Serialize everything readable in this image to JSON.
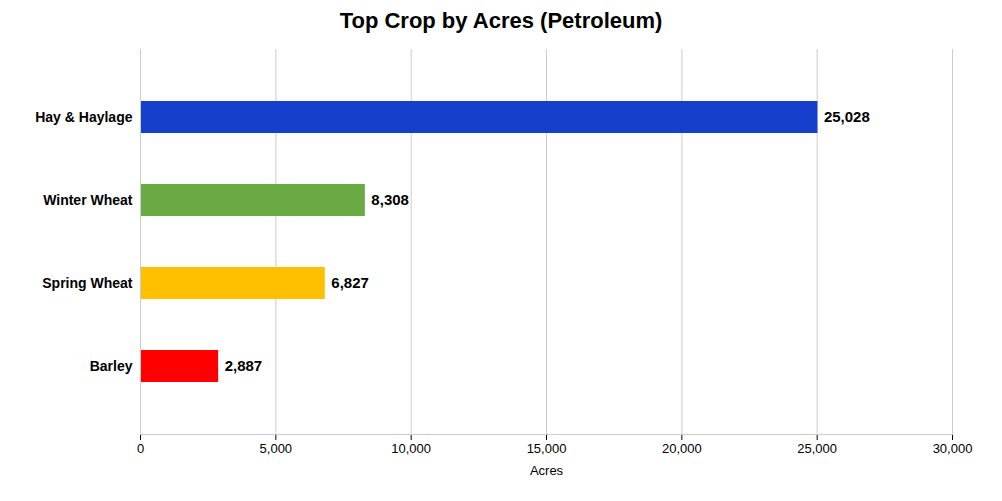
{
  "chart_data": {
    "type": "bar",
    "orientation": "horizontal",
    "title": "Top Crop by Acres (Petroleum)",
    "categories": [
      "Barley",
      "Spring Wheat",
      "Winter Wheat",
      "Hay & Haylage"
    ],
    "values": [
      2887,
      6827,
      8308,
      25028
    ],
    "value_labels": [
      "2,887",
      "6,827",
      "8,308",
      "25,028"
    ],
    "data_labels": true,
    "colors": [
      "#ff0000",
      "#ffc000",
      "#6aaa45",
      "#1640cc"
    ],
    "xlabel": "Acres",
    "xlim": [
      0,
      30000
    ],
    "xticks": [
      0,
      {
        "value": 5000,
        "label": "5,000"
      },
      {
        "value": 10000,
        "label": "10,000"
      },
      {
        "value": 15000,
        "label": "15,000"
      },
      {
        "value": 20000,
        "label": "20,000"
      },
      {
        "value": 25000,
        "label": "25,000"
      },
      {
        "value": 30000,
        "label": "30,000"
      }
    ],
    "grid": true
  }
}
